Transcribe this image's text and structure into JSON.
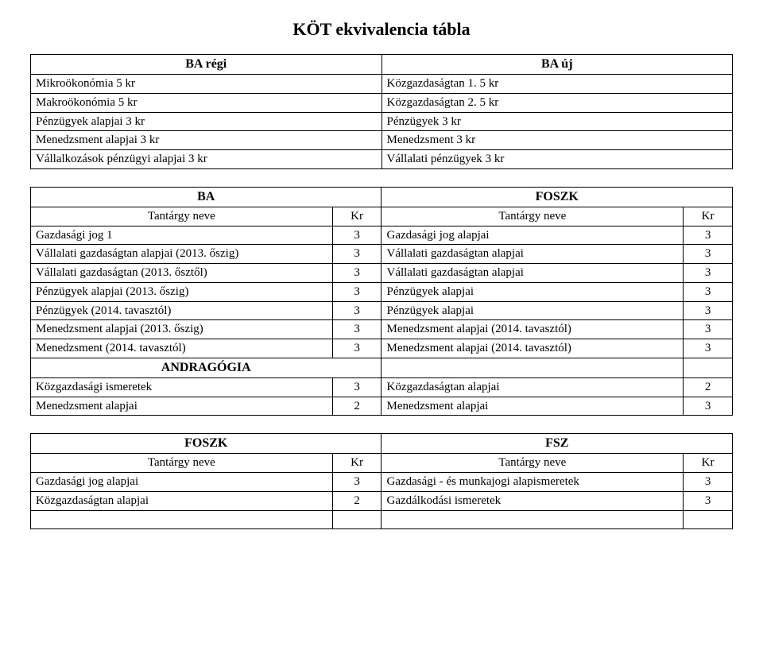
{
  "title": "KÖT ekvivalencia tábla",
  "mapTable": {
    "leftHeader": "BA régi",
    "rightHeader": "BA új",
    "rows": [
      {
        "left": "Mikroökonómia 5 kr",
        "right": "Közgazdaságtan 1. 5 kr"
      },
      {
        "left": "Makroökonómia 5 kr",
        "right": "Közgazdaságtan 2. 5 kr"
      },
      {
        "left": "Pénzügyek alapjai 3 kr",
        "right": "Pénzügyek 3 kr"
      },
      {
        "left": "Menedzsment alapjai  3 kr",
        "right": "Menedzsment 3 kr"
      },
      {
        "left": "Vállalkozások pénzügyi alapjai  3 kr",
        "right": "Vállalati pénzügyek 3 kr"
      }
    ]
  },
  "baFoszk": {
    "leftHeader": "BA",
    "rightHeader": "FOSZK",
    "colLabels": {
      "name": "Tantárgy neve",
      "kr": "Kr"
    },
    "rows": [
      {
        "l": "Gazdasági jog 1",
        "lk": "3",
        "r": "Gazdasági jog alapjai",
        "rk": "3"
      },
      {
        "l": "Vállalati gazdaságtan alapjai (2013. őszig)",
        "lk": "3",
        "r": "Vállalati gazdaságtan alapjai",
        "rk": "3"
      },
      {
        "l": "Vállalati gazdaságtan (2013. ősztől)",
        "lk": "3",
        "r": "Vállalati gazdaságtan alapjai",
        "rk": "3"
      },
      {
        "l": "Pénzügyek alapjai (2013. őszig)",
        "lk": "3",
        "r": "Pénzügyek alapjai",
        "rk": "3"
      },
      {
        "l": "Pénzügyek (2014. tavasztól)",
        "lk": "3",
        "r": "Pénzügyek alapjai",
        "rk": "3"
      },
      {
        "l": "Menedzsment alapjai (2013. őszig)",
        "lk": "3",
        "r": "Menedzsment alapjai (2014. tavasztól)",
        "rk": "3"
      },
      {
        "l": "Menedzsment (2014. tavasztól)",
        "lk": "3",
        "r": "Menedzsment alapjai (2014. tavasztól)",
        "rk": "3"
      }
    ],
    "andragogiaLabel": "ANDRAGÓGIA",
    "andragogiaRows": [
      {
        "l": "Közgazdasági ismeretek",
        "lk": "3",
        "r": "Közgazdaságtan alapjai",
        "rk": "2"
      },
      {
        "l": "Menedzsment alapjai",
        "lk": "2",
        "r": "Menedzsment alapjai",
        "rk": "3"
      }
    ]
  },
  "foszkFsz": {
    "leftHeader": "FOSZK",
    "rightHeader": "FSZ",
    "colLabels": {
      "name": "Tantárgy neve",
      "kr": "Kr"
    },
    "rows": [
      {
        "l": "Gazdasági jog alapjai",
        "lk": "3",
        "r": "Gazdasági - és munkajogi alapismeretek",
        "rk": "3"
      },
      {
        "l": "Közgazdaságtan alapjai",
        "lk": "2",
        "r": "Gazdálkodási ismeretek",
        "rk": "3"
      }
    ]
  }
}
